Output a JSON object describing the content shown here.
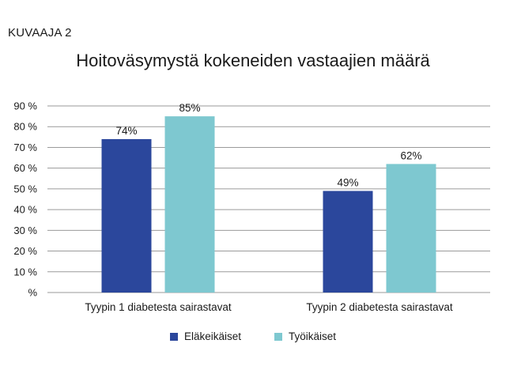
{
  "figure_label": "KUVAAJA 2",
  "chart_data": {
    "type": "bar",
    "title": "Hoitoväsymystä kokeneiden vastaajien määrä",
    "categories": [
      "Tyypin 1 diabetesta sairastavat",
      "Tyypin 2 diabetesta sairastavat"
    ],
    "series": [
      {
        "name": "Eläkeikäiset",
        "values": [
          74,
          49
        ],
        "labels": [
          "74%",
          "49%"
        ],
        "color": "#2b479c"
      },
      {
        "name": "Työikäiset",
        "values": [
          85,
          62
        ],
        "labels": [
          "85%",
          "62%"
        ],
        "color": "#7ec8d0"
      }
    ],
    "ylim": [
      0,
      90
    ],
    "yticks": [
      0,
      10,
      20,
      30,
      40,
      50,
      60,
      70,
      80,
      90
    ],
    "ytick_labels": [
      "%",
      "10 %",
      "20 %",
      "30 %",
      "40 %",
      "50 %",
      "60 %",
      "70 %",
      "80 %",
      "90 %"
    ],
    "xlabel": "",
    "ylabel": "",
    "grid": true,
    "legend_position": "bottom"
  }
}
